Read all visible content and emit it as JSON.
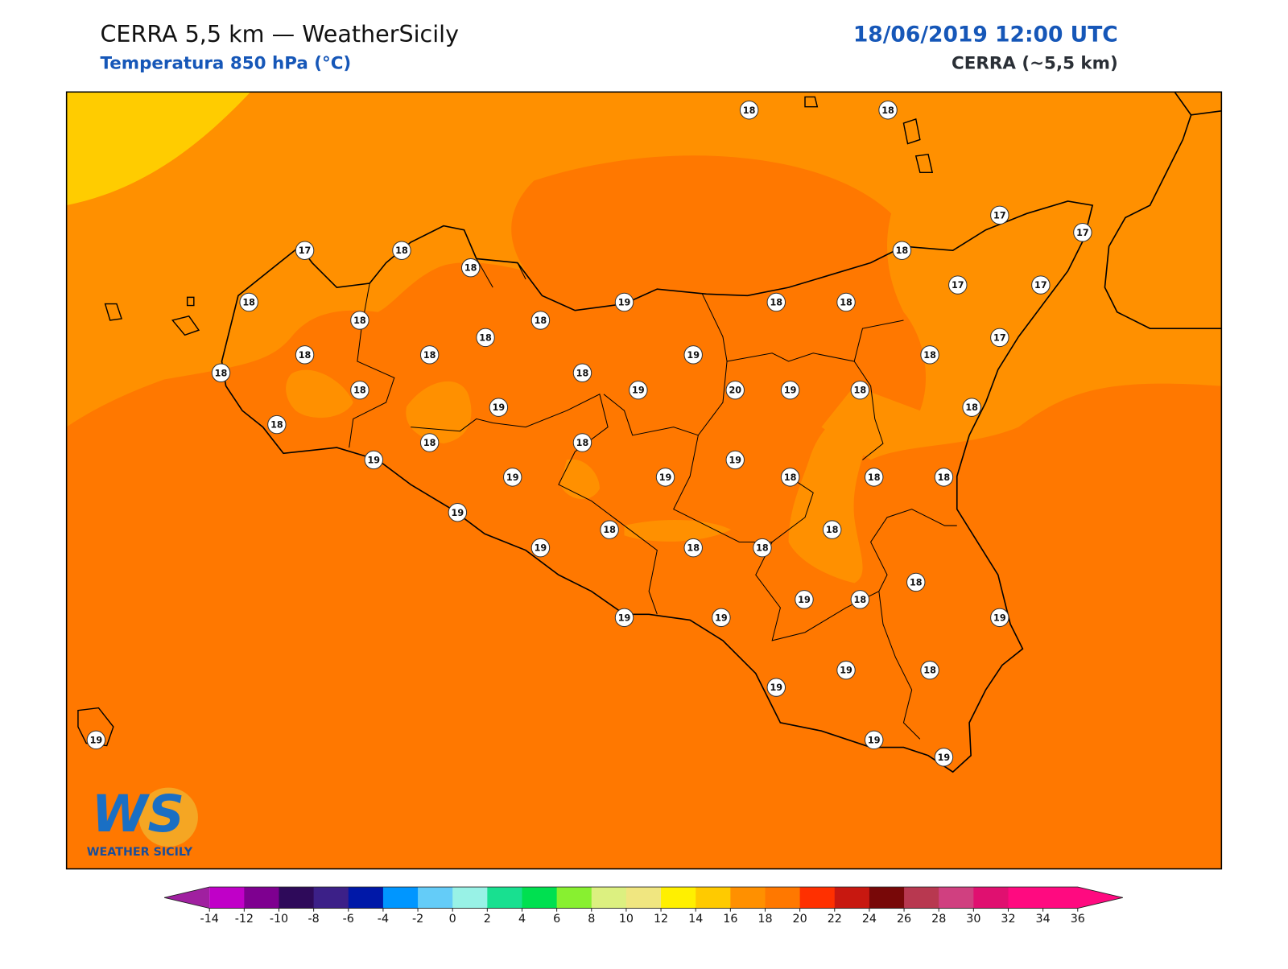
{
  "header": {
    "title": "CERRA 5,5 km — WeatherSicily",
    "subtitle": "Temperatura 850 hPa (°C)",
    "datetime": "18/06/2019 12:00 UTC",
    "model": "CERRA (~5,5 km)"
  },
  "map": {
    "stations": [
      18,
      18,
      17,
      18,
      18,
      17,
      17,
      18,
      18,
      19,
      18,
      18,
      17,
      17,
      18,
      18,
      18,
      17,
      18,
      18,
      19,
      18,
      18,
      18,
      18,
      19,
      20,
      19,
      18,
      19,
      18,
      18,
      18,
      18,
      19,
      19,
      19,
      19,
      18,
      18,
      18,
      19,
      18,
      18,
      19,
      18,
      18,
      18,
      19,
      18,
      19,
      19,
      19,
      19,
      18,
      19,
      19,
      19,
      19
    ]
  },
  "colorbar": {
    "ticks": [
      -14,
      -12,
      -10,
      -8,
      -6,
      -4,
      -2,
      0,
      2,
      4,
      6,
      8,
      10,
      12,
      14,
      16,
      18,
      20,
      22,
      24,
      26,
      28,
      30,
      32,
      34,
      36
    ],
    "colors": [
      "#c000c8",
      "#7e0090",
      "#2e0a5a",
      "#3c2088",
      "#0018a8",
      "#0096ff",
      "#64ccf8",
      "#98f2e6",
      "#18e090",
      "#00e050",
      "#88f030",
      "#dcf080",
      "#f0e680",
      "#fff000",
      "#ffca00",
      "#ff9000",
      "#ff7800",
      "#ff3000",
      "#c81810",
      "#780808",
      "#b83850",
      "#d04080",
      "#e01070",
      "#ff0a80",
      "#ff0a80"
    ],
    "extend_colors": [
      "#a020a0",
      "#ff0a80"
    ]
  },
  "logo": {
    "mark": "WS",
    "name": "WEATHER SICILY"
  }
}
